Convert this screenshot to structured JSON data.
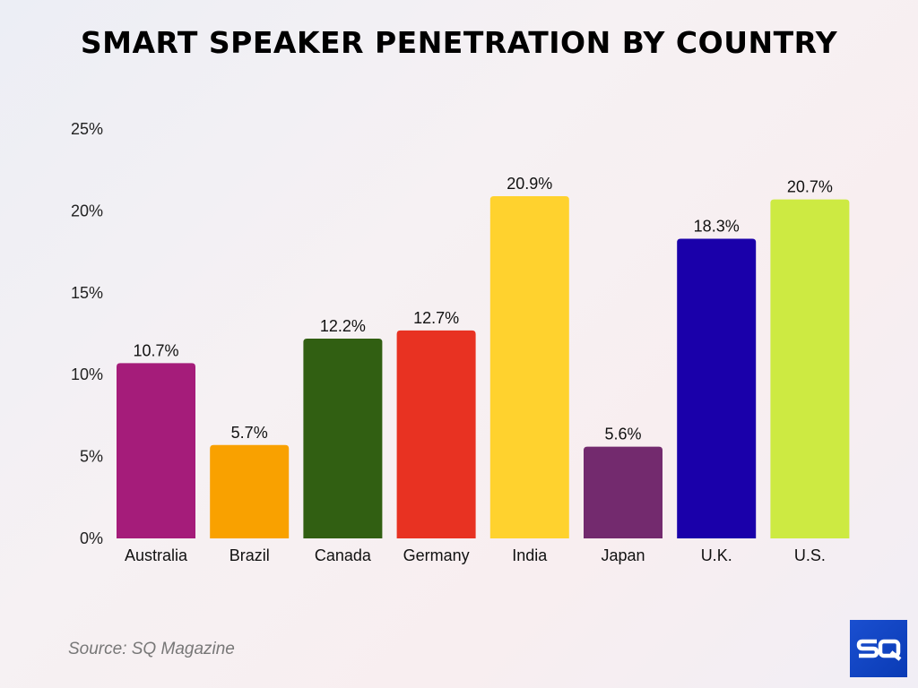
{
  "chart_data": {
    "type": "bar",
    "title": "SMART SPEAKER PENETRATION BY COUNTRY",
    "categories": [
      "Australia",
      "Brazil",
      "Canada",
      "Germany",
      "India",
      "Japan",
      "U.K.",
      "U.S."
    ],
    "values": [
      10.7,
      5.7,
      12.2,
      12.7,
      20.9,
      5.6,
      18.3,
      20.7
    ],
    "data_labels": [
      "10.7%",
      "5.7%",
      "12.2%",
      "12.7%",
      "20.9%",
      "5.6%",
      "18.3%",
      "20.7%"
    ],
    "colors": [
      "#a51c7a",
      "#f9a100",
      "#315f12",
      "#e83222",
      "#ffd22e",
      "#732a6e",
      "#1a00aa",
      "#cdea42"
    ],
    "ylim": [
      0,
      25
    ],
    "yticks": [
      0,
      5,
      10,
      15,
      20,
      25
    ],
    "ytick_labels": [
      "0%",
      "5%",
      "10%",
      "15%",
      "20%",
      "25%"
    ],
    "xlabel": "",
    "ylabel": "",
    "grid": false,
    "legend": "none"
  },
  "source": "Source: SQ Magazine",
  "logo_text": "SQ"
}
